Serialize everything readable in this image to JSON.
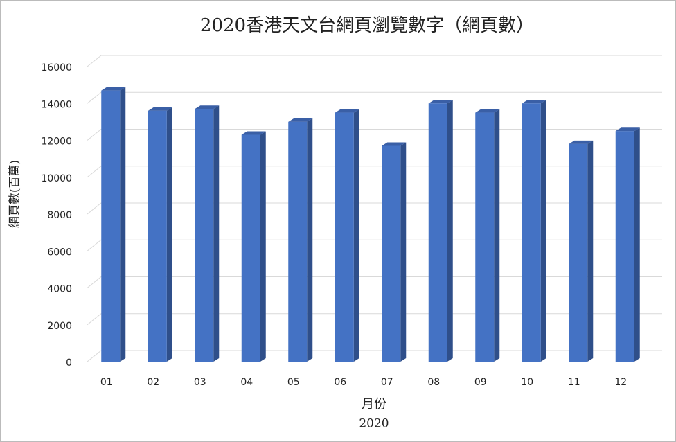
{
  "chart_data": {
    "type": "bar3d",
    "title": "2020香港天文台網頁瀏覽數字（網頁數）",
    "x_label": "月份",
    "x_sublabel": "2020",
    "y_label": "網頁數(百萬)",
    "categories": [
      "01",
      "02",
      "03",
      "04",
      "05",
      "06",
      "07",
      "08",
      "09",
      "10",
      "11",
      "12"
    ],
    "values": [
      14700,
      13600,
      13700,
      12300,
      13000,
      13500,
      11700,
      14000,
      13500,
      14000,
      11800,
      12500
    ],
    "color": "#4472c4",
    "ylim": [
      0,
      16000
    ],
    "yticks": [
      0,
      2000,
      4000,
      6000,
      8000,
      10000,
      12000,
      14000,
      16000
    ],
    "grid": true
  }
}
